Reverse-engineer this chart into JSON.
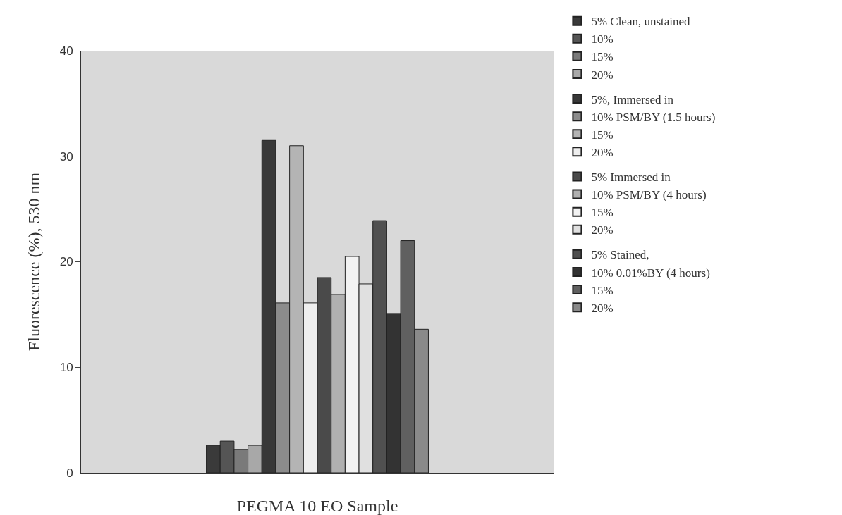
{
  "chart_data": {
    "type": "bar",
    "xlabel": "PEGMA 10 EO Sample",
    "ylabel": "Fluorescence (%), 530 nm",
    "categories": [
      null
    ],
    "series": [
      {
        "name": "5% Clean, unstained",
        "color": "#3a3a3a",
        "values": [
          2.6
        ]
      },
      {
        "name": "10%",
        "color": "#555555",
        "values": [
          3.0
        ]
      },
      {
        "name": "15%",
        "color": "#7a7a7a",
        "values": [
          2.2
        ]
      },
      {
        "name": "20%",
        "color": "#a8a8a8",
        "values": [
          2.6
        ]
      },
      {
        "name": "5%, Immersed in",
        "color": "#383838",
        "values": [
          31.5
        ]
      },
      {
        "name": "10% PSM/BY (1.5 hours)",
        "color": "#8c8c8c",
        "values": [
          16.1
        ]
      },
      {
        "name": "15%",
        "color": "#b4b4b4",
        "values": [
          31.0
        ]
      },
      {
        "name": "20%",
        "color": "#eeeeee",
        "values": [
          16.1
        ]
      },
      {
        "name": "5% Immersed in",
        "color": "#4a4a4a",
        "values": [
          18.5
        ]
      },
      {
        "name": "10% PSM/BY (4 hours)",
        "color": "#b0b0b0",
        "values": [
          16.9
        ]
      },
      {
        "name": "15%",
        "color": "#f2f2f2",
        "values": [
          20.5
        ]
      },
      {
        "name": "20%",
        "color": "#e0e0e0",
        "values": [
          17.9
        ]
      },
      {
        "name": "5% Stained,",
        "color": "#505050",
        "values": [
          23.9
        ]
      },
      {
        "name": "10% 0.01%BY (4 hours)",
        "color": "#333333",
        "values": [
          15.1
        ]
      },
      {
        "name": "15%",
        "color": "#606060",
        "values": [
          22.0
        ]
      },
      {
        "name": "20%",
        "color": "#8a8a8a",
        "values": [
          13.6
        ]
      }
    ],
    "ylim": [
      0,
      40
    ],
    "yticks": [
      0,
      10,
      20,
      30,
      40
    ],
    "grid": false,
    "legend": "right"
  }
}
